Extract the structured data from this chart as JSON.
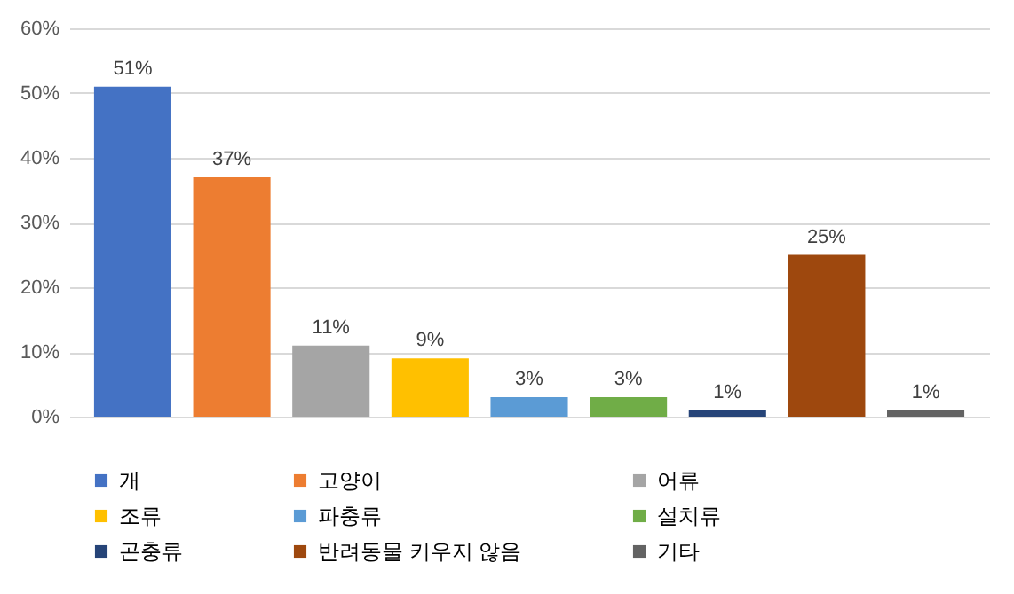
{
  "chart_data": {
    "type": "bar",
    "categories": [
      null,
      null,
      null,
      null,
      null,
      null,
      null,
      null,
      null
    ],
    "series": [
      {
        "name": "개",
        "color": "#4472c4",
        "values": [
          51,
          null,
          null,
          null,
          null,
          null,
          null,
          null,
          null
        ],
        "value_labels": [
          "51%",
          null,
          null,
          null,
          null,
          null,
          null,
          null,
          null
        ]
      },
      {
        "name": "고양이",
        "color": "#ed7d31",
        "values": [
          null,
          37,
          null,
          null,
          null,
          null,
          null,
          null,
          null
        ],
        "value_labels": [
          null,
          "37%",
          null,
          null,
          null,
          null,
          null,
          null,
          null
        ]
      },
      {
        "name": "어류",
        "color": "#a5a5a5",
        "values": [
          null,
          null,
          11,
          null,
          null,
          null,
          null,
          null,
          null
        ],
        "value_labels": [
          null,
          null,
          "11%",
          null,
          null,
          null,
          null,
          null,
          null
        ]
      },
      {
        "name": "조류",
        "color": "#ffc000",
        "values": [
          null,
          null,
          null,
          9,
          null,
          null,
          null,
          null,
          null
        ],
        "value_labels": [
          null,
          null,
          null,
          "9%",
          null,
          null,
          null,
          null,
          null
        ]
      },
      {
        "name": "파충류",
        "color": "#5b9bd5",
        "values": [
          null,
          null,
          null,
          null,
          3,
          null,
          null,
          null,
          null
        ],
        "value_labels": [
          null,
          null,
          null,
          null,
          "3%",
          null,
          null,
          null,
          null
        ]
      },
      {
        "name": "설치류",
        "color": "#70ad47",
        "values": [
          null,
          null,
          null,
          null,
          null,
          3,
          null,
          null,
          null
        ],
        "value_labels": [
          null,
          null,
          null,
          null,
          null,
          "3%",
          null,
          null,
          null
        ]
      },
      {
        "name": "곤충류",
        "color": "#264478",
        "values": [
          null,
          null,
          null,
          null,
          null,
          null,
          1,
          null,
          null
        ],
        "value_labels": [
          null,
          null,
          null,
          null,
          null,
          null,
          "1%",
          null,
          null
        ]
      },
      {
        "name": "반려동물 키우지 않음",
        "color": "#9e480e",
        "values": [
          null,
          null,
          null,
          null,
          null,
          null,
          null,
          25,
          null
        ],
        "value_labels": [
          null,
          null,
          null,
          null,
          null,
          null,
          null,
          "25%",
          null
        ]
      },
      {
        "name": "기타",
        "color": "#636363",
        "values": [
          null,
          null,
          null,
          null,
          null,
          null,
          null,
          null,
          1
        ],
        "value_labels": [
          null,
          null,
          null,
          null,
          null,
          null,
          null,
          null,
          "1%"
        ]
      }
    ],
    "ylim": [
      0,
      60
    ],
    "yticks": [
      {
        "value": 0,
        "label": "0%"
      },
      {
        "value": 10,
        "label": "10%"
      },
      {
        "value": 20,
        "label": "20%"
      },
      {
        "value": 30,
        "label": "30%"
      },
      {
        "value": 40,
        "label": "40%"
      },
      {
        "value": 50,
        "label": "50%"
      },
      {
        "value": 60,
        "label": "60%"
      }
    ],
    "grid": "y",
    "legend": "bottom",
    "tick_labels": "y"
  }
}
